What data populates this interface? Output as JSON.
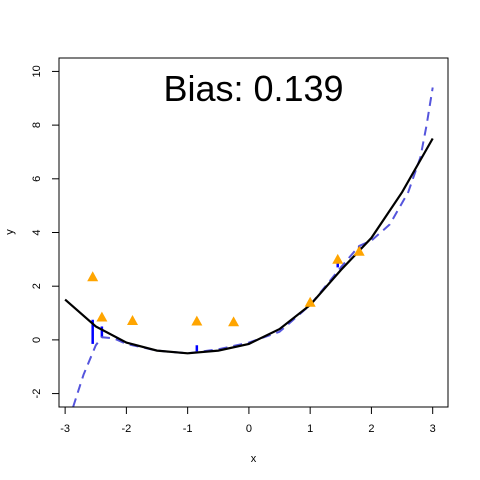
{
  "chart_data": {
    "type": "scatter",
    "xlabel": "x",
    "ylabel": "y",
    "xlim": [
      -3.1,
      3.25
    ],
    "ylim": [
      -2.5,
      10.5
    ],
    "xticks": [
      -3,
      -2,
      -1,
      0,
      1,
      2,
      3
    ],
    "yticks": [
      -2,
      0,
      2,
      4,
      6,
      8,
      10
    ],
    "annotation": "Bias:  0.139",
    "colors": {
      "points": "#FFA500",
      "true_curve": "#000000",
      "fit_curve": "#5555DD",
      "residuals": "#0000FF"
    },
    "series": [
      {
        "kind": "true-curve",
        "x": [
          -3,
          -2.5,
          -2,
          -1.5,
          -1,
          -0.5,
          0,
          0.5,
          1,
          1.5,
          2,
          2.5,
          3
        ],
        "y": [
          1.5,
          0.5,
          -0.1,
          -0.4,
          -0.5,
          -0.4,
          -0.15,
          0.4,
          1.3,
          2.6,
          3.8,
          5.5,
          7.5
        ]
      },
      {
        "kind": "fitted-curve",
        "x": [
          -2.87,
          -2.7,
          -2.5,
          -2.4,
          -2.2,
          -2,
          -1.5,
          -1,
          -0.5,
          0,
          0.5,
          1,
          1.5,
          1.8,
          2,
          2.3,
          2.6,
          2.8,
          2.9,
          3
        ],
        "y": [
          -2.5,
          -1.3,
          -0.2,
          0.1,
          0.05,
          -0.15,
          -0.4,
          -0.5,
          -0.35,
          -0.1,
          0.3,
          1.3,
          2.7,
          3.5,
          3.7,
          4.3,
          5.5,
          6.8,
          8.0,
          9.4
        ]
      },
      {
        "kind": "points",
        "x": [
          -2.55,
          -2.4,
          -1.9,
          -0.85,
          -0.25,
          1.0,
          1.45,
          1.8
        ],
        "y": [
          2.35,
          0.85,
          0.72,
          0.7,
          0.67,
          1.4,
          3.0,
          3.3
        ]
      },
      {
        "kind": "residuals",
        "x": [
          -2.55,
          -2.4,
          -0.85,
          1.45,
          1.8
        ],
        "y_start": [
          -0.15,
          0.1,
          -0.5,
          2.7,
          3.5
        ],
        "y_end": [
          0.75,
          0.5,
          -0.2,
          3.1,
          3.2
        ]
      }
    ]
  }
}
